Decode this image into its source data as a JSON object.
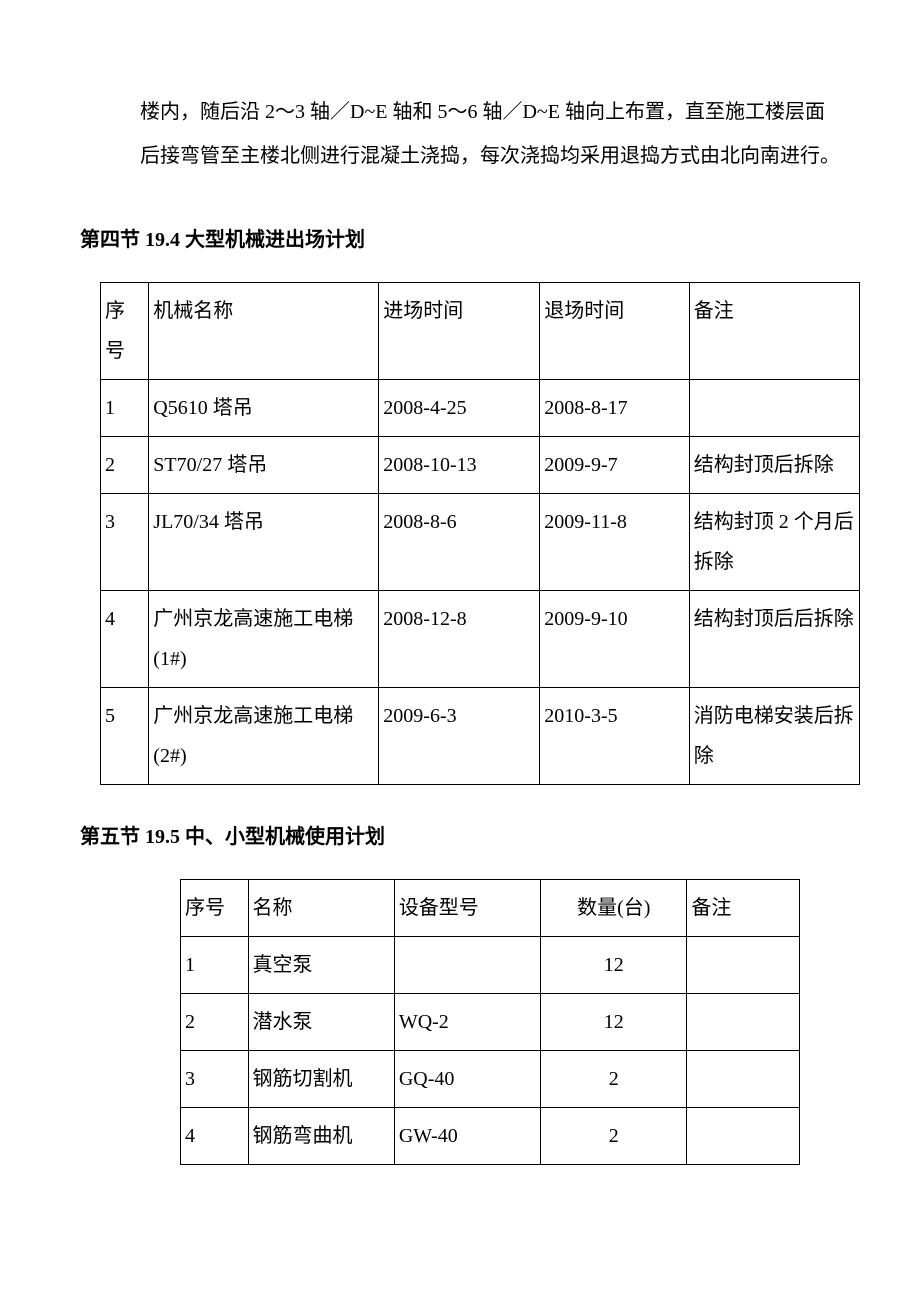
{
  "intro_text": "楼内，随后沿 2～3 轴／D~E 轴和 5～6 轴／D~E 轴向上布置，直至施工楼层面后接弯管至主楼北侧进行混凝土浇捣，每次浇捣均采用退捣方式由北向南进行。",
  "section4_heading": "第四节 19.4 大型机械进出场计划",
  "section5_heading": "第五节 19.5 中、小型机械使用计划",
  "table1": {
    "headers": {
      "num": "序号",
      "name": "机械名称",
      "enter": "进场时间",
      "exit": "退场时间",
      "note": "备注"
    },
    "rows": [
      {
        "num": "1",
        "name": "Q5610 塔吊",
        "enter": "2008-4-25",
        "exit": "2008-8-17",
        "note": ""
      },
      {
        "num": "2",
        "name": "ST70/27 塔吊",
        "enter": "2008-10-13",
        "exit": "2009-9-7",
        "note": "结构封顶后拆除"
      },
      {
        "num": "3",
        "name": "JL70/34 塔吊",
        "enter": "2008-8-6",
        "exit": "2009-11-8",
        "note": "结构封顶 2 个月后拆除"
      },
      {
        "num": "4",
        "name": "广州京龙高速施工电梯(1#)",
        "enter": "2008-12-8",
        "exit": "2009-9-10",
        "note": "结构封顶后后拆除"
      },
      {
        "num": "5",
        "name": "广州京龙高速施工电梯(2#)",
        "enter": "2009-6-3",
        "exit": "2010-3-5",
        "note": "消防电梯安装后拆除"
      }
    ]
  },
  "table2": {
    "headers": {
      "num": "序号",
      "name": "名称",
      "model": "设备型号",
      "qty": "数量(台)",
      "note": "备注"
    },
    "rows": [
      {
        "num": "1",
        "name": "真空泵",
        "model": "",
        "qty": "12",
        "note": ""
      },
      {
        "num": "2",
        "name": "潜水泵",
        "model": "WQ-2",
        "qty": "12",
        "note": ""
      },
      {
        "num": "3",
        "name": "钢筋切割机",
        "model": "GQ-40",
        "qty": "2",
        "note": ""
      },
      {
        "num": "4",
        "name": "钢筋弯曲机",
        "model": "GW-40",
        "qty": "2",
        "note": ""
      }
    ]
  }
}
